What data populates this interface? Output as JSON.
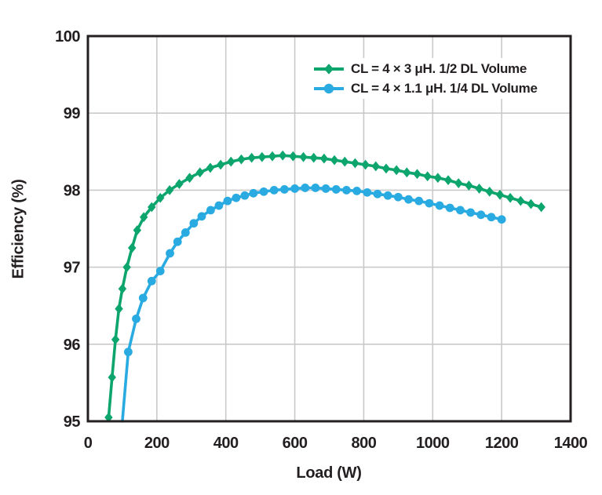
{
  "figure": {
    "background": "#ffffff"
  },
  "chart_data": {
    "type": "line",
    "title": "",
    "xlabel": "Load (W)",
    "ylabel": "Efficiency (%)",
    "xlim": [
      0,
      1400
    ],
    "ylim": [
      95,
      100
    ],
    "xticks": [
      0,
      200,
      400,
      600,
      800,
      1000,
      1200,
      1400
    ],
    "yticks": [
      95,
      96,
      97,
      98,
      99,
      100
    ],
    "grid": true,
    "legend_position": "top-right-inside",
    "colors": {
      "grid": "#c9c9c9",
      "frame": "#231f20",
      "text": "#231f20"
    },
    "series": [
      {
        "name": "CL = 4 × 3 μH. 1/2 DL Volume",
        "color": "#0ca56d",
        "marker": "diamond",
        "points": [
          [
            60,
            95.05
          ],
          [
            70,
            95.57
          ],
          [
            80,
            96.06
          ],
          [
            90,
            96.46
          ],
          [
            100,
            96.72
          ],
          [
            113,
            97.0
          ],
          [
            128,
            97.25
          ],
          [
            143,
            97.48
          ],
          [
            162,
            97.65
          ],
          [
            185,
            97.78
          ],
          [
            210,
            97.9
          ],
          [
            237,
            98.0
          ],
          [
            265,
            98.08
          ],
          [
            295,
            98.16
          ],
          [
            325,
            98.23
          ],
          [
            355,
            98.29
          ],
          [
            385,
            98.33
          ],
          [
            415,
            98.37
          ],
          [
            445,
            98.4
          ],
          [
            475,
            98.42
          ],
          [
            505,
            98.43
          ],
          [
            535,
            98.44
          ],
          [
            565,
            98.45
          ],
          [
            595,
            98.44
          ],
          [
            625,
            98.43
          ],
          [
            655,
            98.42
          ],
          [
            685,
            98.41
          ],
          [
            715,
            98.39
          ],
          [
            745,
            98.37
          ],
          [
            775,
            98.35
          ],
          [
            805,
            98.33
          ],
          [
            835,
            98.31
          ],
          [
            865,
            98.28
          ],
          [
            895,
            98.26
          ],
          [
            925,
            98.23
          ],
          [
            955,
            98.21
          ],
          [
            985,
            98.18
          ],
          [
            1015,
            98.16
          ],
          [
            1045,
            98.13
          ],
          [
            1075,
            98.09
          ],
          [
            1105,
            98.06
          ],
          [
            1135,
            98.02
          ],
          [
            1165,
            97.98
          ],
          [
            1195,
            97.94
          ],
          [
            1225,
            97.9
          ],
          [
            1255,
            97.86
          ],
          [
            1285,
            97.82
          ],
          [
            1315,
            97.78
          ]
        ]
      },
      {
        "name": "CL = 4 × 1.1 μH. 1/4 DL Volume",
        "color": "#29abe2",
        "marker": "circle",
        "points": [
          [
            100,
            95.0
          ],
          [
            117,
            95.9
          ],
          [
            140,
            96.33
          ],
          [
            160,
            96.6
          ],
          [
            185,
            96.82
          ],
          [
            210,
            96.95
          ],
          [
            238,
            97.18
          ],
          [
            260,
            97.33
          ],
          [
            283,
            97.45
          ],
          [
            307,
            97.57
          ],
          [
            330,
            97.66
          ],
          [
            356,
            97.74
          ],
          [
            380,
            97.8
          ],
          [
            405,
            97.86
          ],
          [
            430,
            97.9
          ],
          [
            455,
            97.93
          ],
          [
            480,
            97.96
          ],
          [
            510,
            97.98
          ],
          [
            540,
            98.0
          ],
          [
            570,
            98.01
          ],
          [
            600,
            98.02
          ],
          [
            630,
            98.03
          ],
          [
            660,
            98.03
          ],
          [
            690,
            98.02
          ],
          [
            720,
            98.01
          ],
          [
            750,
            98.0
          ],
          [
            780,
            97.99
          ],
          [
            810,
            97.97
          ],
          [
            840,
            97.95
          ],
          [
            870,
            97.93
          ],
          [
            900,
            97.91
          ],
          [
            930,
            97.88
          ],
          [
            960,
            97.86
          ],
          [
            990,
            97.83
          ],
          [
            1020,
            97.8
          ],
          [
            1050,
            97.77
          ],
          [
            1080,
            97.74
          ],
          [
            1110,
            97.71
          ],
          [
            1140,
            97.68
          ],
          [
            1170,
            97.65
          ],
          [
            1200,
            97.62
          ]
        ]
      }
    ]
  }
}
